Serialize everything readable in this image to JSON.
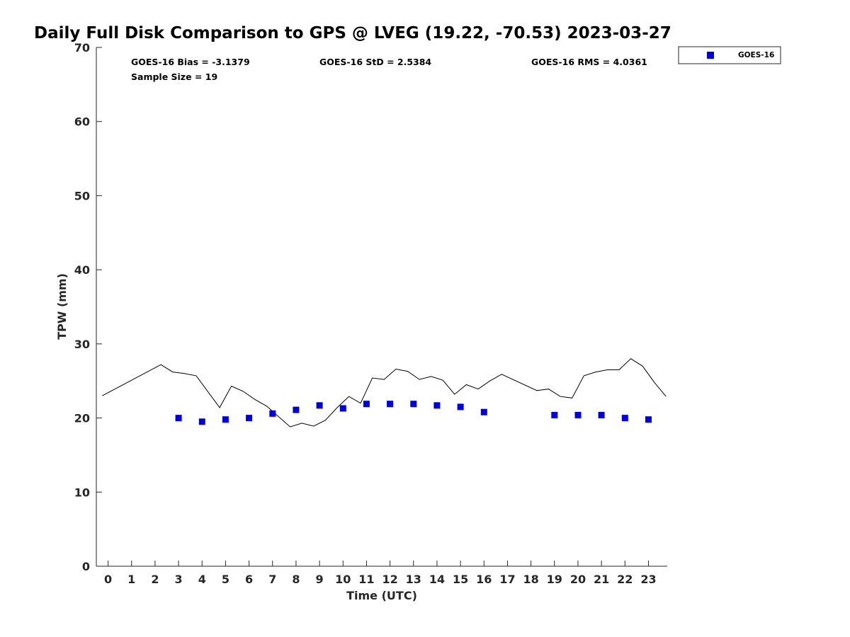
{
  "chart_data": {
    "type": "scatter",
    "title": "Daily Full Disk Comparison to GPS @ LVEG (19.22, -70.53) 2023-03-27",
    "xlabel": "Time (UTC)",
    "ylabel": "TPW (mm)",
    "xlim": [
      -0.5,
      23.8
    ],
    "ylim": [
      0,
      70
    ],
    "xticks": [
      "0",
      "1",
      "2",
      "3",
      "4",
      "5",
      "6",
      "7",
      "8",
      "9",
      "10",
      "11",
      "12",
      "13",
      "14",
      "15",
      "16",
      "17",
      "18",
      "19",
      "20",
      "21",
      "22",
      "23"
    ],
    "yticks": [
      "0",
      "10",
      "20",
      "30",
      "40",
      "50",
      "60",
      "70"
    ],
    "grid": false,
    "legend_position": "top-right, outside plot",
    "stats": {
      "bias": "GOES-16 Bias = -3.1379",
      "std": "GOES-16 StD = 2.5384",
      "rms": "GOES-16 RMS = 4.0361",
      "sample_size": "Sample Size = 19"
    },
    "series": [
      {
        "name": "GOES-16",
        "kind": "scatter",
        "marker": "square",
        "color": "#0000dd",
        "x": [
          3,
          4,
          5,
          6,
          7,
          8,
          9,
          10,
          11,
          12,
          13,
          14,
          15,
          16,
          19,
          20,
          21,
          22,
          23
        ],
        "y": [
          20.0,
          19.5,
          19.8,
          20.0,
          20.6,
          21.1,
          21.7,
          21.3,
          21.9,
          21.9,
          21.9,
          21.7,
          21.5,
          20.8,
          20.4,
          20.4,
          20.4,
          20.0,
          19.8
        ]
      },
      {
        "kind": "line",
        "color": "#000000",
        "x": [
          -0.25,
          2.25,
          2.75,
          3.25,
          3.75,
          4.75,
          5.25,
          5.75,
          6.25,
          6.75,
          7.25,
          7.75,
          8.25,
          8.75,
          9.25,
          9.75,
          10.25,
          10.75,
          11.25,
          11.75,
          12.25,
          12.75,
          13.25,
          13.75,
          14.25,
          14.75,
          15.25,
          15.75,
          16.25,
          16.75,
          18.25,
          18.75,
          19.25,
          19.75,
          20.25,
          20.75,
          21.25,
          21.75,
          22.25,
          22.75,
          23.25,
          23.75
        ],
        "y": [
          23.0,
          27.2,
          26.2,
          26.0,
          25.7,
          21.4,
          24.3,
          23.6,
          22.5,
          21.6,
          20.2,
          18.8,
          19.3,
          18.9,
          19.7,
          21.4,
          22.9,
          22.0,
          25.4,
          25.2,
          26.6,
          26.3,
          25.2,
          25.6,
          25.1,
          23.2,
          24.5,
          23.9,
          25.0,
          25.9,
          23.7,
          23.9,
          22.9,
          22.7,
          25.7,
          26.2,
          26.5,
          26.5,
          28.0,
          27.0,
          24.8,
          22.9
        ]
      }
    ]
  }
}
